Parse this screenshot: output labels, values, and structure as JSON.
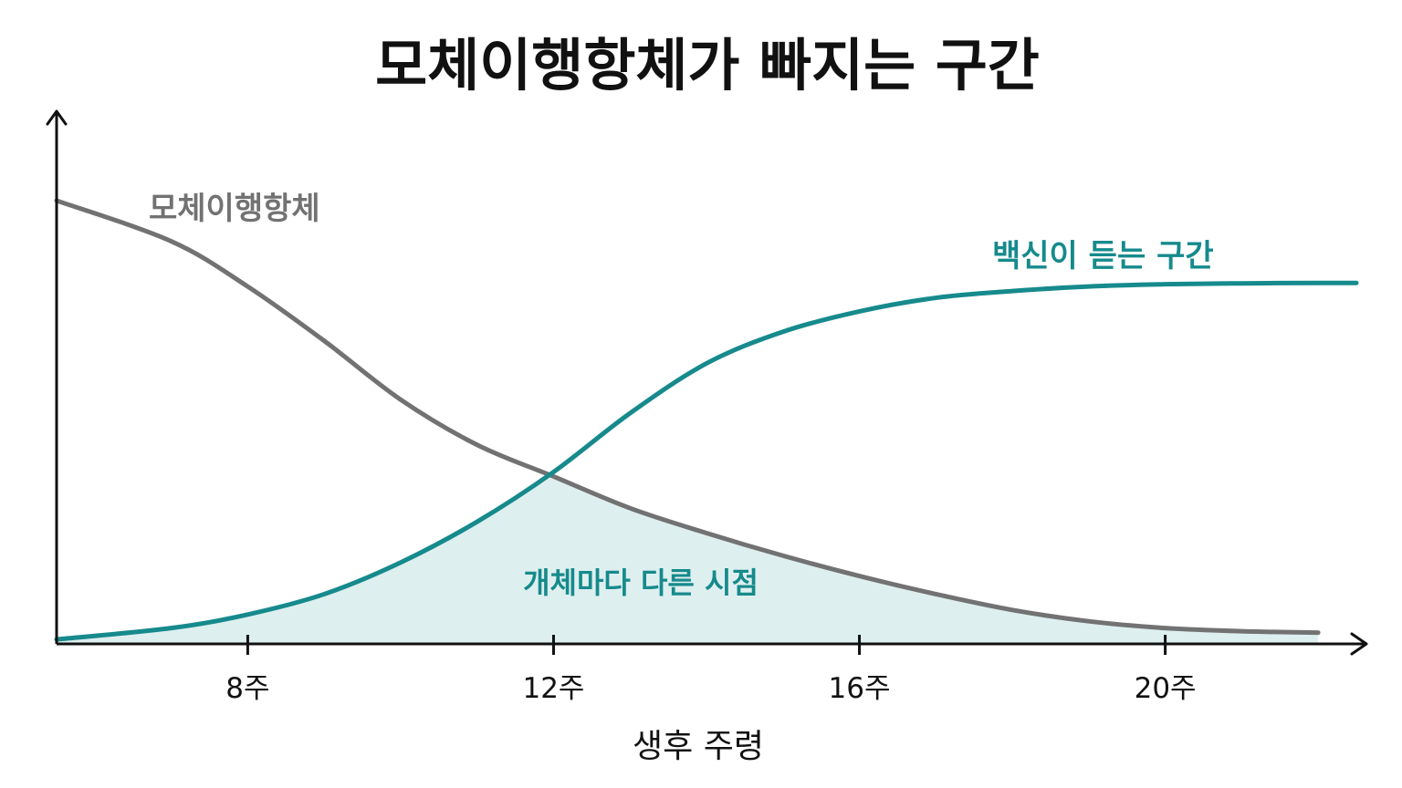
{
  "chart_data": {
    "type": "line",
    "title": "모체이행항체가 빠지는 구간",
    "xlabel": "생후 주령",
    "ylabel": "",
    "x_ticks": [
      {
        "value": 8,
        "label": "8주"
      },
      {
        "value": 12,
        "label": "12주"
      },
      {
        "value": 16,
        "label": "16주"
      },
      {
        "value": 20,
        "label": "20주"
      }
    ],
    "xlim": [
      5.5,
      22.5
    ],
    "ylim": [
      0,
      1
    ],
    "grid": false,
    "series": [
      {
        "name": "모체이행항체",
        "color": "#727272",
        "x": [
          5.5,
          7,
          8,
          9,
          10,
          11,
          12,
          13,
          14,
          15,
          16,
          17,
          18,
          19,
          20,
          21,
          22
        ],
        "y": [
          0.98,
          0.89,
          0.79,
          0.67,
          0.54,
          0.44,
          0.37,
          0.3,
          0.245,
          0.195,
          0.15,
          0.11,
          0.075,
          0.05,
          0.035,
          0.028,
          0.025
        ]
      },
      {
        "name": "백신이 듣는 구간",
        "color": "#168a8c",
        "x": [
          5.5,
          7,
          8,
          9,
          10,
          11,
          12,
          13,
          14,
          15,
          16,
          17,
          18,
          19,
          20,
          21,
          22,
          22.5
        ],
        "y": [
          0.01,
          0.035,
          0.065,
          0.11,
          0.18,
          0.27,
          0.38,
          0.51,
          0.62,
          0.69,
          0.735,
          0.765,
          0.78,
          0.79,
          0.795,
          0.797,
          0.798,
          0.798
        ]
      }
    ],
    "annotation": {
      "text": "개체마다 다른 시점",
      "color": "#168a8c",
      "fill": "#deefef"
    },
    "axis_color": "#111111"
  }
}
